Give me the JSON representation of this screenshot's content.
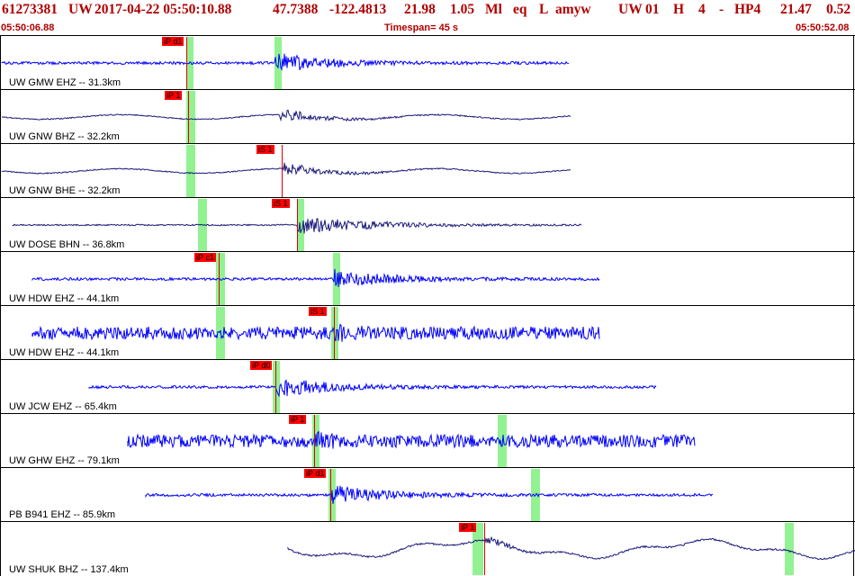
{
  "header": {
    "event_id": "61273381",
    "network": "UW",
    "datetime": "2017-04-22 05:50:10.88",
    "lat": "47.7388",
    "lon": "-122.4813",
    "depth": "21.98",
    "magnitude": "1.05",
    "mag_type": "Ml",
    "event_type": "eq",
    "flag": "L",
    "analyst": "amyw",
    "agency": "UW",
    "version": "01",
    "gtype": "H",
    "num": "4",
    "dash": "-",
    "algo": "H",
    "phase_set": "P4",
    "rms1": "21.47",
    "rms2": "0.52"
  },
  "subheader": {
    "start_time": "05:50:06.88",
    "timespan_label": "Timespan=  45 s",
    "end_time": "05:50:52.08"
  },
  "colors": {
    "header_text": "#b00000",
    "trace_blue": "#0000ff",
    "trace_navy": "#1a1a7a",
    "pick_flag": "#ff0000",
    "window_green": "#7ff07f"
  },
  "channels": [
    {
      "label": "UW GMW EHZ -- 31.3km",
      "pick": "iP d1",
      "color": "blue",
      "kind": "hf"
    },
    {
      "label": "UW GNW BHZ -- 32.2km",
      "pick": "iP 1",
      "color": "navy",
      "kind": "bb"
    },
    {
      "label": "UW GNW BHE -- 32.2km",
      "pick": "iS 1",
      "color": "navy",
      "kind": "bbs"
    },
    {
      "label": "UW DOSE BHN -- 36.8km",
      "pick": "iS 1",
      "color": "navy",
      "kind": "hfs"
    },
    {
      "label": "UW HDW EHZ -- 44.1km",
      "pick": "iP c1",
      "color": "blue",
      "kind": "hf"
    },
    {
      "label": "UW HDW EHZ -- 44.1km",
      "pick": "iS 1",
      "color": "blue",
      "kind": "noisy"
    },
    {
      "label": "UW JCW EHZ -- 65.4km",
      "pick": "iP d0",
      "color": "blue",
      "kind": "hf"
    },
    {
      "label": "UW GHW EHZ -- 79.1km",
      "pick": "iP 1",
      "color": "blue",
      "kind": "noisy"
    },
    {
      "label": "PB B941 EHZ -- 85.9km",
      "pick": "iP d1",
      "color": "blue",
      "kind": "hf"
    },
    {
      "label": "UW SHUK BHZ -- 137.4km",
      "pick": "iP 1",
      "color": "navy",
      "kind": "lp"
    }
  ]
}
